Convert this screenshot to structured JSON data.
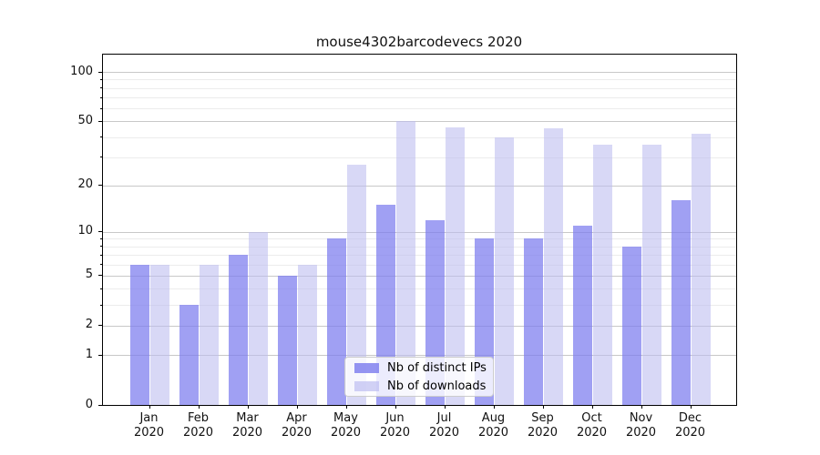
{
  "chart_data": {
    "type": "bar",
    "title": "mouse4302barcodevecs 2020",
    "categories": [
      {
        "month": "Jan",
        "year": "2020"
      },
      {
        "month": "Feb",
        "year": "2020"
      },
      {
        "month": "Mar",
        "year": "2020"
      },
      {
        "month": "Apr",
        "year": "2020"
      },
      {
        "month": "May",
        "year": "2020"
      },
      {
        "month": "Jun",
        "year": "2020"
      },
      {
        "month": "Jul",
        "year": "2020"
      },
      {
        "month": "Aug",
        "year": "2020"
      },
      {
        "month": "Sep",
        "year": "2020"
      },
      {
        "month": "Oct",
        "year": "2020"
      },
      {
        "month": "Nov",
        "year": "2020"
      },
      {
        "month": "Dec",
        "year": "2020"
      }
    ],
    "series": [
      {
        "name": "Nb of distinct IPs",
        "color": "#7c7cee",
        "alpha": 0.72,
        "values": [
          6,
          3,
          7,
          5,
          9,
          15,
          12,
          9,
          9,
          11,
          8,
          16
        ]
      },
      {
        "name": "Nb of downloads",
        "color": "#bbbbf0",
        "alpha": 0.58,
        "values": [
          6,
          6,
          10,
          6,
          27,
          50,
          46,
          40,
          45,
          36,
          36,
          42
        ]
      }
    ],
    "y_axis": {
      "scale": "log1p",
      "major_ticks": [
        100,
        50,
        20,
        10,
        5,
        2,
        1,
        0
      ],
      "minor_ticks": [
        3,
        4,
        6,
        7,
        8,
        9,
        30,
        40,
        60,
        70,
        80,
        90
      ],
      "top_value": 100
    },
    "xlabel": "",
    "ylabel": "",
    "grid": "horizontal",
    "grid_major_color": "#c8c8c8",
    "grid_minor_color": "#ececec",
    "legend": {
      "position": "bottom-center"
    }
  }
}
